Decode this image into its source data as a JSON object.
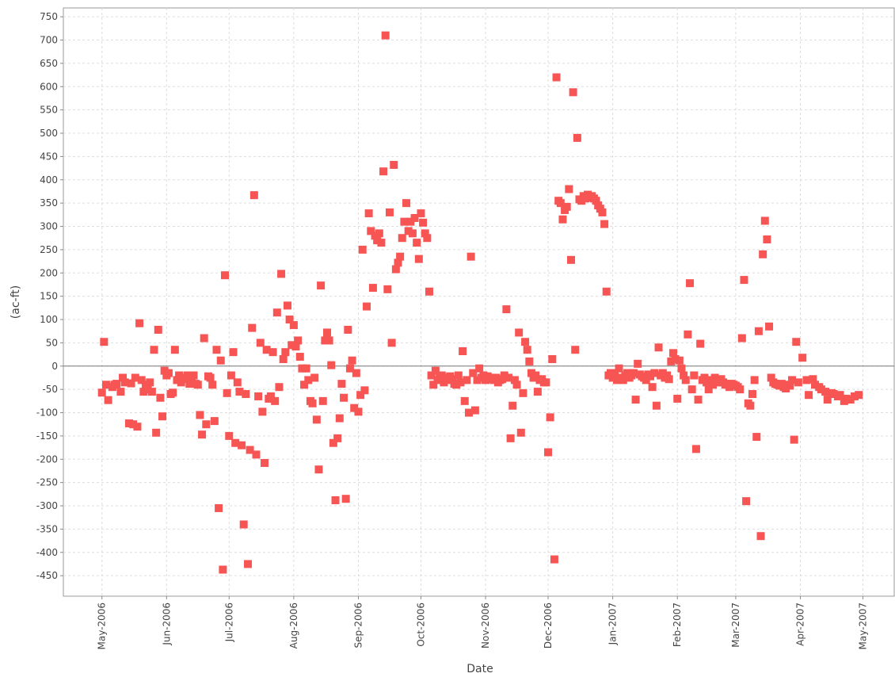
{
  "chart_data": {
    "type": "scatter",
    "x_label": "Date",
    "y_label": "(ac-ft)",
    "color": "#f75454",
    "grid": true,
    "xlim": [
      -18.5,
      380
    ],
    "ylim": [
      -494,
      769
    ],
    "xticks": [
      {
        "value": 0,
        "label": "May-2006"
      },
      {
        "value": 31,
        "label": "Jun-2006"
      },
      {
        "value": 61,
        "label": "Jul-2006"
      },
      {
        "value": 92,
        "label": "Aug-2006"
      },
      {
        "value": 123,
        "label": "Sep-2006"
      },
      {
        "value": 153,
        "label": "Oct-2006"
      },
      {
        "value": 184,
        "label": "Nov-2006"
      },
      {
        "value": 214,
        "label": "Dec-2006"
      },
      {
        "value": 245,
        "label": "Jan-2007"
      },
      {
        "value": 276,
        "label": "Feb-2007"
      },
      {
        "value": 304,
        "label": "Mar-2007"
      },
      {
        "value": 335,
        "label": "Apr-2007"
      },
      {
        "value": 365,
        "label": "May-2007"
      }
    ],
    "yticks": [
      -450,
      -400,
      -350,
      -300,
      -250,
      -200,
      -150,
      -100,
      -50,
      0,
      50,
      100,
      150,
      200,
      250,
      300,
      350,
      400,
      450,
      500,
      550,
      600,
      650,
      700,
      750
    ],
    "x": [
      0,
      1,
      2,
      3,
      5,
      6,
      7,
      9,
      10,
      11,
      13,
      14,
      15,
      16,
      17,
      18,
      19,
      20,
      21,
      22,
      23,
      24,
      25,
      26,
      27,
      28,
      29,
      30,
      31,
      32,
      33,
      34,
      35,
      36,
      37,
      38,
      39,
      40,
      41,
      42,
      43,
      44,
      45,
      46,
      47,
      48,
      49,
      50,
      51,
      52,
      53,
      54,
      55,
      56,
      57,
      58,
      59,
      60,
      61,
      62,
      63,
      64,
      65,
      66,
      67,
      68,
      69,
      70,
      71,
      72,
      73,
      74,
      75,
      76,
      77,
      78,
      79,
      80,
      81,
      82,
      83,
      84,
      85,
      86,
      87,
      88,
      89,
      90,
      91,
      92,
      93,
      94,
      95,
      96,
      97,
      98,
      99,
      100,
      101,
      102,
      103,
      104,
      105,
      106,
      107,
      108,
      109,
      110,
      111,
      112,
      113,
      114,
      115,
      116,
      117,
      118,
      119,
      120,
      121,
      122,
      123,
      124,
      125,
      126,
      127,
      128,
      129,
      130,
      131,
      132,
      133,
      134,
      135,
      136,
      137,
      138,
      139,
      140,
      141,
      142,
      143,
      144,
      145,
      146,
      147,
      148,
      149,
      150,
      151,
      152,
      153,
      154,
      155,
      156,
      157,
      158,
      159,
      160,
      161,
      162,
      163,
      164,
      165,
      166,
      167,
      168,
      169,
      170,
      171,
      172,
      173,
      174,
      175,
      176,
      177,
      178,
      179,
      180,
      181,
      182,
      183,
      184,
      185,
      186,
      187,
      188,
      189,
      190,
      191,
      192,
      193,
      194,
      195,
      196,
      197,
      198,
      199,
      200,
      201,
      202,
      203,
      204,
      205,
      206,
      207,
      208,
      209,
      210,
      211,
      212,
      213,
      214,
      215,
      216,
      217,
      218,
      219,
      220,
      221,
      222,
      223,
      224,
      225,
      226,
      227,
      228,
      229,
      230,
      231,
      232,
      233,
      234,
      235,
      236,
      237,
      238,
      239,
      240,
      241,
      242,
      243,
      244,
      245,
      246,
      247,
      248,
      249,
      250,
      251,
      252,
      253,
      254,
      255,
      256,
      257,
      258,
      259,
      260,
      261,
      262,
      263,
      264,
      265,
      266,
      267,
      268,
      269,
      270,
      271,
      272,
      273,
      274,
      275,
      276,
      277,
      278,
      279,
      280,
      281,
      282,
      283,
      284,
      285,
      286,
      287,
      288,
      289,
      290,
      291,
      292,
      293,
      294,
      295,
      296,
      297,
      298,
      299,
      300,
      301,
      302,
      303,
      304,
      305,
      306,
      307,
      308,
      309,
      310,
      311,
      312,
      313,
      314,
      315,
      316,
      317,
      318,
      319,
      320,
      321,
      322,
      323,
      324,
      325,
      326,
      327,
      328,
      329,
      330,
      331,
      332,
      333,
      334,
      336,
      338,
      339,
      341,
      342,
      344,
      345,
      347,
      348,
      350,
      351,
      353,
      354,
      356,
      357,
      359,
      361,
      363
    ],
    "values": [
      -57,
      52,
      -40,
      -73,
      -45,
      -40,
      -38,
      -55,
      -25,
      -35,
      -123,
      -37,
      -125,
      -25,
      -130,
      92,
      -30,
      -55,
      -40,
      -50,
      -35,
      -55,
      35,
      -143,
      78,
      -68,
      -108,
      -10,
      -20,
      -15,
      -60,
      -57,
      35,
      -30,
      -20,
      -35,
      -28,
      -25,
      -20,
      -38,
      -28,
      -20,
      -38,
      -40,
      -105,
      -147,
      60,
      -125,
      -22,
      -25,
      -40,
      -118,
      35,
      -305,
      12,
      -437,
      195,
      -58,
      -150,
      -20,
      30,
      -165,
      -35,
      -55,
      -170,
      -340,
      -60,
      -425,
      -180,
      82,
      367,
      -190,
      -65,
      50,
      -98,
      -208,
      35,
      -70,
      -65,
      30,
      -75,
      115,
      -45,
      198,
      15,
      30,
      130,
      100,
      45,
      88,
      42,
      55,
      20,
      -5,
      -40,
      -5,
      -30,
      -75,
      -80,
      -25,
      -115,
      -222,
      173,
      -75,
      55,
      72,
      55,
      2,
      -165,
      -288,
      -155,
      -112,
      -38,
      -68,
      -285,
      78,
      -5,
      12,
      -90,
      -15,
      -98,
      -62,
      250,
      -52,
      128,
      328,
      290,
      168,
      280,
      270,
      285,
      265,
      418,
      710,
      165,
      330,
      50,
      432,
      208,
      222,
      235,
      275,
      310,
      350,
      290,
      310,
      285,
      318,
      265,
      230,
      328,
      308,
      285,
      275,
      160,
      -20,
      -40,
      -10,
      -30,
      -25,
      -20,
      -35,
      -25,
      -30,
      -22,
      -28,
      -38,
      -40,
      -20,
      -35,
      32,
      -75,
      -30,
      -100,
      235,
      -15,
      -95,
      -30,
      -5,
      -25,
      -20,
      -30,
      -22,
      -28,
      -25,
      -30,
      -25,
      -35,
      -30,
      -28,
      -20,
      122,
      -25,
      -155,
      -85,
      -30,
      -40,
      72,
      -143,
      -58,
      52,
      35,
      10,
      -15,
      -25,
      -20,
      -55,
      -30,
      -28,
      -35,
      -35,
      -185,
      -110,
      15,
      -415,
      620,
      355,
      350,
      315,
      335,
      342,
      380,
      228,
      588,
      35,
      490,
      358,
      355,
      365,
      360,
      368,
      362,
      365,
      360,
      355,
      345,
      338,
      330,
      305,
      160,
      -20,
      -15,
      -25,
      -15,
      -30,
      -5,
      -25,
      -30,
      -20,
      -15,
      -25,
      -20,
      -15,
      -72,
      5,
      -18,
      -22,
      -25,
      -30,
      -18,
      -22,
      -45,
      -15,
      -85,
      40,
      -20,
      -15,
      -25,
      -20,
      -28,
      10,
      28,
      15,
      -70,
      12,
      -5,
      -20,
      -30,
      68,
      178,
      -50,
      -20,
      -178,
      -72,
      48,
      -30,
      -25,
      -35,
      -50,
      -30,
      -40,
      -25,
      -35,
      -30,
      -28,
      -35,
      -40,
      -38,
      -45,
      -38,
      -40,
      -42,
      -45,
      -50,
      60,
      185,
      -290,
      -80,
      -85,
      -60,
      -30,
      -152,
      75,
      -365,
      240,
      312,
      272,
      85,
      -25,
      -35,
      -38,
      -40,
      -42,
      -38,
      -45,
      -48,
      -40,
      -42,
      -30,
      -158,
      52,
      -35,
      18,
      -30,
      -62,
      -28,
      -40,
      -45,
      -50,
      -55,
      -72,
      -58,
      -60,
      -65,
      -62,
      -75,
      -70,
      -72,
      -65,
      -62
    ]
  }
}
